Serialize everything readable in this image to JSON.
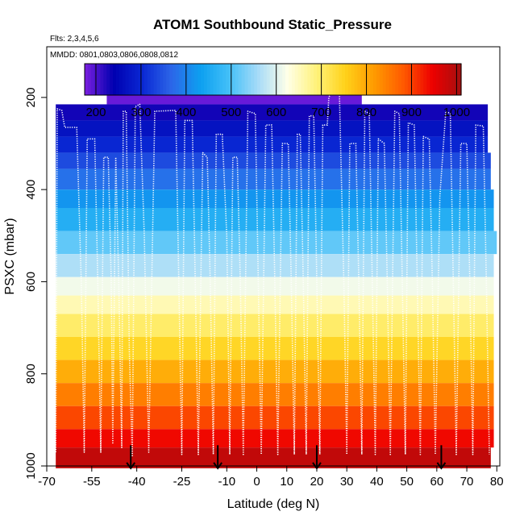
{
  "chart_data": {
    "type": "heatmap",
    "title": "ATOM1 Southbound Static_Pressure",
    "flights_label": "Flts: 2,3,4,5,6",
    "dates_label": "MMDD: 0801,0803,0806,0808,0812",
    "xlabel": "Latitude (deg N)",
    "ylabel": "PSXC (mbar)",
    "xlim": [
      -70,
      81
    ],
    "ylim": [
      1000,
      90
    ],
    "x_ticks": [
      -70,
      -55,
      -40,
      -25,
      -10,
      0,
      10,
      20,
      30,
      40,
      50,
      60,
      70,
      80
    ],
    "x_tick_labels": [
      "-70",
      "-55",
      "-40",
      "-25",
      "-10",
      "0",
      "10",
      "20",
      "30",
      "40",
      "50",
      "60",
      "70",
      "80"
    ],
    "y_ticks": [
      200,
      400,
      600,
      800,
      1000
    ],
    "y_tick_labels": [
      "200",
      "400",
      "600",
      "800",
      "1000"
    ],
    "colorbar": {
      "min": 175,
      "max": 1010,
      "ticks": [
        200,
        300,
        400,
        500,
        600,
        700,
        800,
        900,
        1000
      ],
      "tick_labels": [
        "200",
        "300",
        "400",
        "500",
        "600",
        "700",
        "800",
        "900",
        "1000"
      ],
      "label_color": "#000000"
    },
    "pressure_bands": [
      {
        "p_top": 170,
        "p_bottom": 215,
        "lat_min": -50,
        "lat_max": 35,
        "value": 185
      },
      {
        "p_top": 215,
        "p_bottom": 250,
        "lat_min": -67,
        "lat_max": 77,
        "value": 230
      },
      {
        "p_top": 250,
        "p_bottom": 285,
        "lat_min": -67,
        "lat_max": 77,
        "value": 270
      },
      {
        "p_top": 285,
        "p_bottom": 320,
        "lat_min": -67,
        "lat_max": 77,
        "value": 300
      },
      {
        "p_top": 320,
        "p_bottom": 355,
        "lat_min": -67,
        "lat_max": 78,
        "value": 340
      },
      {
        "p_top": 355,
        "p_bottom": 400,
        "lat_min": -67,
        "lat_max": 78,
        "value": 380
      },
      {
        "p_top": 400,
        "p_bottom": 440,
        "lat_min": -67,
        "lat_max": 79,
        "value": 420
      },
      {
        "p_top": 440,
        "p_bottom": 490,
        "lat_min": -67,
        "lat_max": 79,
        "value": 460
      },
      {
        "p_top": 490,
        "p_bottom": 540,
        "lat_min": -67,
        "lat_max": 80,
        "value": 515
      },
      {
        "p_top": 540,
        "p_bottom": 590,
        "lat_min": -67,
        "lat_max": 79,
        "value": 565
      },
      {
        "p_top": 590,
        "p_bottom": 630,
        "lat_min": -67,
        "lat_max": 79,
        "value": 615
      },
      {
        "p_top": 630,
        "p_bottom": 670,
        "lat_min": -67,
        "lat_max": 79,
        "value": 655
      },
      {
        "p_top": 670,
        "p_bottom": 720,
        "lat_min": -67,
        "lat_max": 79,
        "value": 700
      },
      {
        "p_top": 720,
        "p_bottom": 770,
        "lat_min": -67,
        "lat_max": 79,
        "value": 745
      },
      {
        "p_top": 770,
        "p_bottom": 820,
        "lat_min": -67,
        "lat_max": 79,
        "value": 795
      },
      {
        "p_top": 820,
        "p_bottom": 870,
        "lat_min": -67,
        "lat_max": 79,
        "value": 845
      },
      {
        "p_top": 870,
        "p_bottom": 920,
        "lat_min": -67,
        "lat_max": 79,
        "value": 895
      },
      {
        "p_top": 920,
        "p_bottom": 960,
        "lat_min": -67,
        "lat_max": 79,
        "value": 940
      },
      {
        "p_top": 960,
        "p_bottom": 1005,
        "lat_min": -67,
        "lat_max": 78,
        "value": 985
      }
    ],
    "flight_track": {
      "color": "#ffffff",
      "points": [
        [
          -67,
          970
        ],
        [
          -66.5,
          225
        ],
        [
          -65,
          228
        ],
        [
          -64,
          265
        ],
        [
          -60,
          265
        ],
        [
          -58.5,
          600
        ],
        [
          -57.5,
          970
        ],
        [
          -56.5,
          290
        ],
        [
          -54,
          290
        ],
        [
          -53,
          600
        ],
        [
          -52,
          970
        ],
        [
          -51,
          330
        ],
        [
          -49.5,
          330
        ],
        [
          -48.5,
          600
        ],
        [
          -48,
          950
        ],
        [
          -47,
          330
        ],
        [
          -46,
          600
        ],
        [
          -45,
          960
        ],
        [
          -44.5,
          230
        ],
        [
          -43.5,
          230
        ],
        [
          -42.5,
          750
        ],
        [
          -41.5,
          980
        ],
        [
          -40.5,
          220
        ],
        [
          -39,
          215
        ],
        [
          -37.5,
          500
        ],
        [
          -36,
          970
        ],
        [
          -34,
          230
        ],
        [
          -27,
          228
        ],
        [
          -26,
          600
        ],
        [
          -25,
          975
        ],
        [
          -24,
          250
        ],
        [
          -21.5,
          250
        ],
        [
          -20.5,
          600
        ],
        [
          -19.5,
          975
        ],
        [
          -18,
          320
        ],
        [
          -16.5,
          330
        ],
        [
          -15.5,
          600
        ],
        [
          -14.5,
          975
        ],
        [
          -13.5,
          280
        ],
        [
          -11.5,
          280
        ],
        [
          -10,
          500
        ],
        [
          -9,
          975
        ],
        [
          -8,
          330
        ],
        [
          -6.5,
          330
        ],
        [
          -5.5,
          600
        ],
        [
          -4.5,
          975
        ],
        [
          -3,
          230
        ],
        [
          -0.5,
          235
        ],
        [
          0.5,
          600
        ],
        [
          1.5,
          975
        ],
        [
          3,
          260
        ],
        [
          5,
          260
        ],
        [
          6,
          600
        ],
        [
          7,
          975
        ],
        [
          8.5,
          300
        ],
        [
          10.5,
          300
        ],
        [
          11.5,
          600
        ],
        [
          12.5,
          975
        ],
        [
          13.5,
          280
        ],
        [
          14.5,
          280
        ],
        [
          15.5,
          600
        ],
        [
          16.5,
          975
        ],
        [
          17.5,
          240
        ],
        [
          19,
          240
        ],
        [
          20,
          600
        ],
        [
          21,
          975
        ],
        [
          22,
          260
        ],
        [
          23.5,
          260
        ],
        [
          24,
          200
        ],
        [
          25.5,
          180
        ],
        [
          27.5,
          182
        ],
        [
          29,
          600
        ],
        [
          30,
          975
        ],
        [
          31,
          300
        ],
        [
          33,
          300
        ],
        [
          34,
          600
        ],
        [
          35,
          975
        ],
        [
          36,
          230
        ],
        [
          37.5,
          235
        ],
        [
          38.5,
          600
        ],
        [
          39.5,
          975
        ],
        [
          40.5,
          290
        ],
        [
          42.5,
          300
        ],
        [
          43.5,
          600
        ],
        [
          44.5,
          975
        ],
        [
          46,
          230
        ],
        [
          47.5,
          235
        ],
        [
          48.5,
          600
        ],
        [
          49.5,
          975
        ],
        [
          50.5,
          255
        ],
        [
          52.5,
          260
        ],
        [
          53.5,
          600
        ],
        [
          54.5,
          975
        ],
        [
          55.5,
          285
        ],
        [
          57.5,
          290
        ],
        [
          58.5,
          600
        ],
        [
          59.5,
          975
        ],
        [
          61,
          415
        ],
        [
          63,
          230
        ],
        [
          64.5,
          235
        ],
        [
          65.5,
          600
        ],
        [
          66.5,
          975
        ],
        [
          68,
          300
        ],
        [
          70,
          300
        ],
        [
          71,
          600
        ],
        [
          72,
          975
        ],
        [
          73,
          260
        ],
        [
          75.5,
          262
        ],
        [
          76.5,
          600
        ],
        [
          77.5,
          975
        ]
      ]
    },
    "profile_markers": [
      {
        "lat": -42,
        "p_top": 955,
        "p_bottom": 1005
      },
      {
        "lat": -13,
        "p_top": 955,
        "p_bottom": 1005
      },
      {
        "lat": 20,
        "p_top": 955,
        "p_bottom": 1005
      },
      {
        "lat": 61.5,
        "p_top": 955,
        "p_bottom": 1005
      }
    ],
    "colorscale": [
      "#7b1fe0",
      "#0000b0",
      "#0a28d4",
      "#2c66e8",
      "#0da0f0",
      "#44c0f8",
      "#a8dcf8",
      "#ffffe8",
      "#fff27a",
      "#ffd21a",
      "#ff9a00",
      "#ff5a00",
      "#ee0000",
      "#a50f0f"
    ]
  }
}
